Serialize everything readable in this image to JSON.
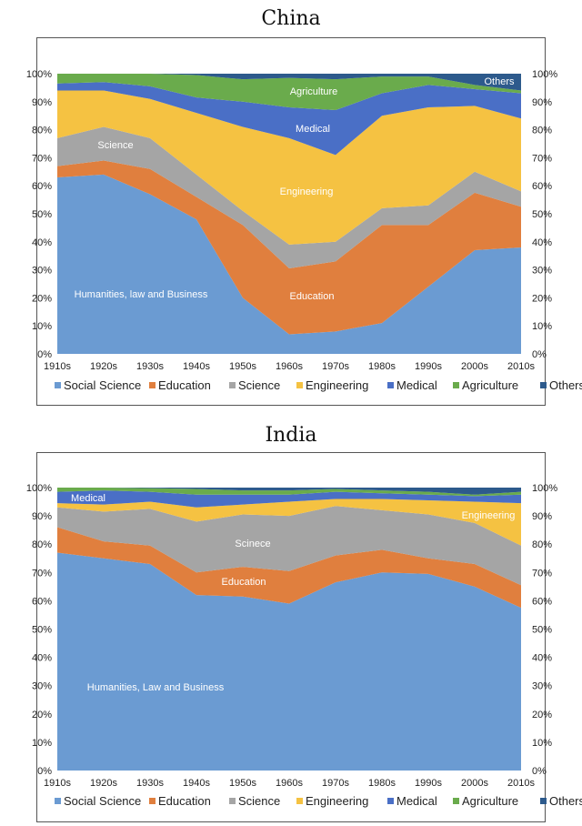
{
  "colors": {
    "Social Science": "#6b9bd2",
    "Education": "#e07f3e",
    "Science": "#a5a5a5",
    "Engineering": "#f5c242",
    "Medical": "#4a6fc6",
    "Agriculture": "#6aab4c",
    "Others": "#2d5a8c"
  },
  "chart_data": [
    {
      "type": "area",
      "stacked": true,
      "title": "China",
      "categories": [
        "1910s",
        "1920s",
        "1930s",
        "1940s",
        "1950s",
        "1960s",
        "1970s",
        "1980s",
        "1990s",
        "2000s",
        "2010s"
      ],
      "ylim": [
        0,
        100
      ],
      "yticks": [
        "0%",
        "10%",
        "20%",
        "30%",
        "40%",
        "50%",
        "60%",
        "70%",
        "80%",
        "90%",
        "100%"
      ],
      "legend_position": "bottom",
      "series": [
        {
          "name": "Social Science",
          "values": [
            63,
            64,
            57,
            48,
            20,
            7,
            8,
            11,
            24,
            37,
            38
          ]
        },
        {
          "name": "Education",
          "values": [
            4,
            5,
            9,
            8,
            26,
            23.5,
            25,
            35,
            22,
            20.5,
            14.5
          ]
        },
        {
          "name": "Science",
          "values": [
            10,
            12,
            11,
            8,
            5,
            8.5,
            7,
            6,
            7,
            7.5,
            5.5
          ]
        },
        {
          "name": "Engineering",
          "values": [
            17,
            13,
            14,
            22,
            30,
            38,
            31,
            33,
            35,
            23.5,
            26
          ]
        },
        {
          "name": "Medical",
          "values": [
            2.5,
            3,
            4.5,
            5.5,
            9,
            11,
            16,
            8,
            8,
            6,
            9
          ]
        },
        {
          "name": "Agriculture",
          "values": [
            3.5,
            3,
            4.5,
            8,
            8,
            10.5,
            11,
            6,
            3,
            1.5,
            1
          ]
        },
        {
          "name": "Others",
          "values": [
            0,
            0,
            0,
            0.5,
            2,
            1.5,
            2,
            1,
            1,
            4,
            6
          ]
        }
      ],
      "annotations": [
        "Others",
        "Agriculture",
        "Medical",
        "Science",
        "Engineering",
        "Humanities, law and Business",
        "Education"
      ]
    },
    {
      "type": "area",
      "stacked": true,
      "title": "India",
      "categories": [
        "1910s",
        "1920s",
        "1930s",
        "1940s",
        "1950s",
        "1960s",
        "1970s",
        "1980s",
        "1990s",
        "2000s",
        "2010s"
      ],
      "ylim": [
        0,
        100
      ],
      "yticks": [
        "0%",
        "10%",
        "20%",
        "30%",
        "40%",
        "50%",
        "60%",
        "70%",
        "80%",
        "90%",
        "100%"
      ],
      "legend_position": "bottom",
      "series": [
        {
          "name": "Social Science",
          "values": [
            77,
            75,
            73,
            62,
            61.5,
            59,
            66.5,
            70,
            69.5,
            65,
            57.5
          ]
        },
        {
          "name": "Education",
          "values": [
            9,
            6,
            6.5,
            8,
            10.5,
            11.5,
            9.5,
            8,
            5.5,
            8,
            8
          ]
        },
        {
          "name": "Science",
          "values": [
            7,
            10.5,
            13,
            18,
            18.5,
            19.5,
            17.5,
            14,
            15.5,
            14.5,
            14
          ]
        },
        {
          "name": "Engineering",
          "values": [
            1.5,
            2.5,
            2.5,
            5,
            3.5,
            5,
            2.5,
            4,
            5,
            7.5,
            15
          ]
        },
        {
          "name": "Medical",
          "values": [
            4,
            5,
            3.5,
            4.5,
            3.5,
            2.5,
            2.5,
            2,
            2,
            2,
            3
          ]
        },
        {
          "name": "Agriculture",
          "values": [
            1.5,
            1,
            1.3,
            2,
            1.5,
            1.5,
            1,
            1,
            1,
            0.5,
            1
          ]
        },
        {
          "name": "Others",
          "values": [
            0,
            0,
            0.2,
            0.5,
            1,
            1,
            0.5,
            1,
            1.5,
            2.5,
            1.5
          ]
        }
      ],
      "annotations": [
        "Medical",
        "Engineering",
        "Scinece",
        "Education",
        "Humanities, Law and Business"
      ]
    }
  ]
}
